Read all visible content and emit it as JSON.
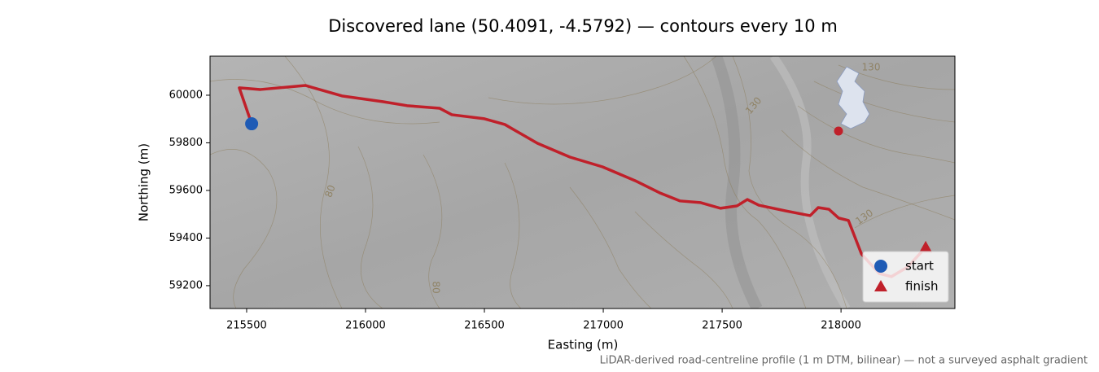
{
  "chart_data": {
    "type": "route",
    "title": "Discovered lane (50.4091, -4.5792) — contours every 10 m",
    "x_label": "Easting (m)",
    "y_label": "Northing (m)",
    "footnote": "LiDAR-derived road-centreline profile (1 m DTM, bilinear) — not a surveyed asphalt gradient",
    "xlim": [
      215346,
      218479
    ],
    "ylim": [
      59104,
      60164
    ],
    "xticks": [
      215500,
      216000,
      216500,
      217000,
      217500,
      218000
    ],
    "yticks": [
      59200,
      59400,
      59600,
      59800,
      60000
    ],
    "route": {
      "color": "#c0202a",
      "x": [
        215521,
        215469,
        215558,
        215747,
        215901,
        216072,
        216175,
        216312,
        216363,
        216500,
        216586,
        216723,
        216860,
        216997,
        217134,
        217237,
        217322,
        217408,
        217493,
        217562,
        217606,
        217654,
        217767,
        217870,
        217904,
        217949,
        217990,
        218031,
        218086,
        218161,
        218212,
        218281,
        218356
      ],
      "y": [
        59880,
        60031,
        60024,
        60041,
        59997,
        59973,
        59956,
        59945,
        59918,
        59901,
        59877,
        59798,
        59740,
        59699,
        59641,
        59590,
        59556,
        59549,
        59525,
        59535,
        59562,
        59538,
        59514,
        59494,
        59528,
        59521,
        59484,
        59474,
        59333,
        59251,
        59238,
        59279,
        59361
      ]
    },
    "markers": [
      {
        "name": "start",
        "x": 215521,
        "y": 59880,
        "color": "#1f5bb5",
        "shape": "circle"
      },
      {
        "name": "finish",
        "x": 218356,
        "y": 59361,
        "color": "#c0202a",
        "shape": "triangle"
      }
    ],
    "legend": "lower right",
    "contour_labels": [
      "130",
      "130",
      "80",
      "130",
      "80"
    ]
  }
}
